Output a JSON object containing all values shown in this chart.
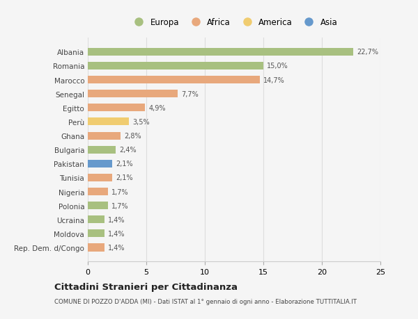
{
  "countries": [
    "Albania",
    "Romania",
    "Marocco",
    "Senegal",
    "Egitto",
    "Perù",
    "Ghana",
    "Bulgaria",
    "Pakistan",
    "Tunisia",
    "Nigeria",
    "Polonia",
    "Ucraina",
    "Moldova",
    "Rep. Dem. d/Congo"
  ],
  "values": [
    22.7,
    15.0,
    14.7,
    7.7,
    4.9,
    3.5,
    2.8,
    2.4,
    2.1,
    2.1,
    1.7,
    1.7,
    1.4,
    1.4,
    1.4
  ],
  "labels": [
    "22,7%",
    "15,0%",
    "14,7%",
    "7,7%",
    "4,9%",
    "3,5%",
    "2,8%",
    "2,4%",
    "2,1%",
    "2,1%",
    "1,7%",
    "1,7%",
    "1,4%",
    "1,4%",
    "1,4%"
  ],
  "regions": [
    "Europa",
    "Europa",
    "Africa",
    "Africa",
    "Africa",
    "America",
    "Africa",
    "Europa",
    "Asia",
    "Africa",
    "Africa",
    "Europa",
    "Europa",
    "Europa",
    "Africa"
  ],
  "colors": {
    "Europa": "#a8c080",
    "Africa": "#e8a87c",
    "America": "#f0cc70",
    "Asia": "#6699cc"
  },
  "legend_order": [
    "Europa",
    "Africa",
    "America",
    "Asia"
  ],
  "title": "Cittadini Stranieri per Cittadinanza",
  "subtitle": "COMUNE DI POZZO D'ADDA (MI) - Dati ISTAT al 1° gennaio di ogni anno - Elaborazione TUTTITALIA.IT",
  "xlim": [
    0,
    25
  ],
  "xticks": [
    0,
    5,
    10,
    15,
    20,
    25
  ],
  "background_color": "#f5f5f5",
  "grid_color": "#dddddd"
}
